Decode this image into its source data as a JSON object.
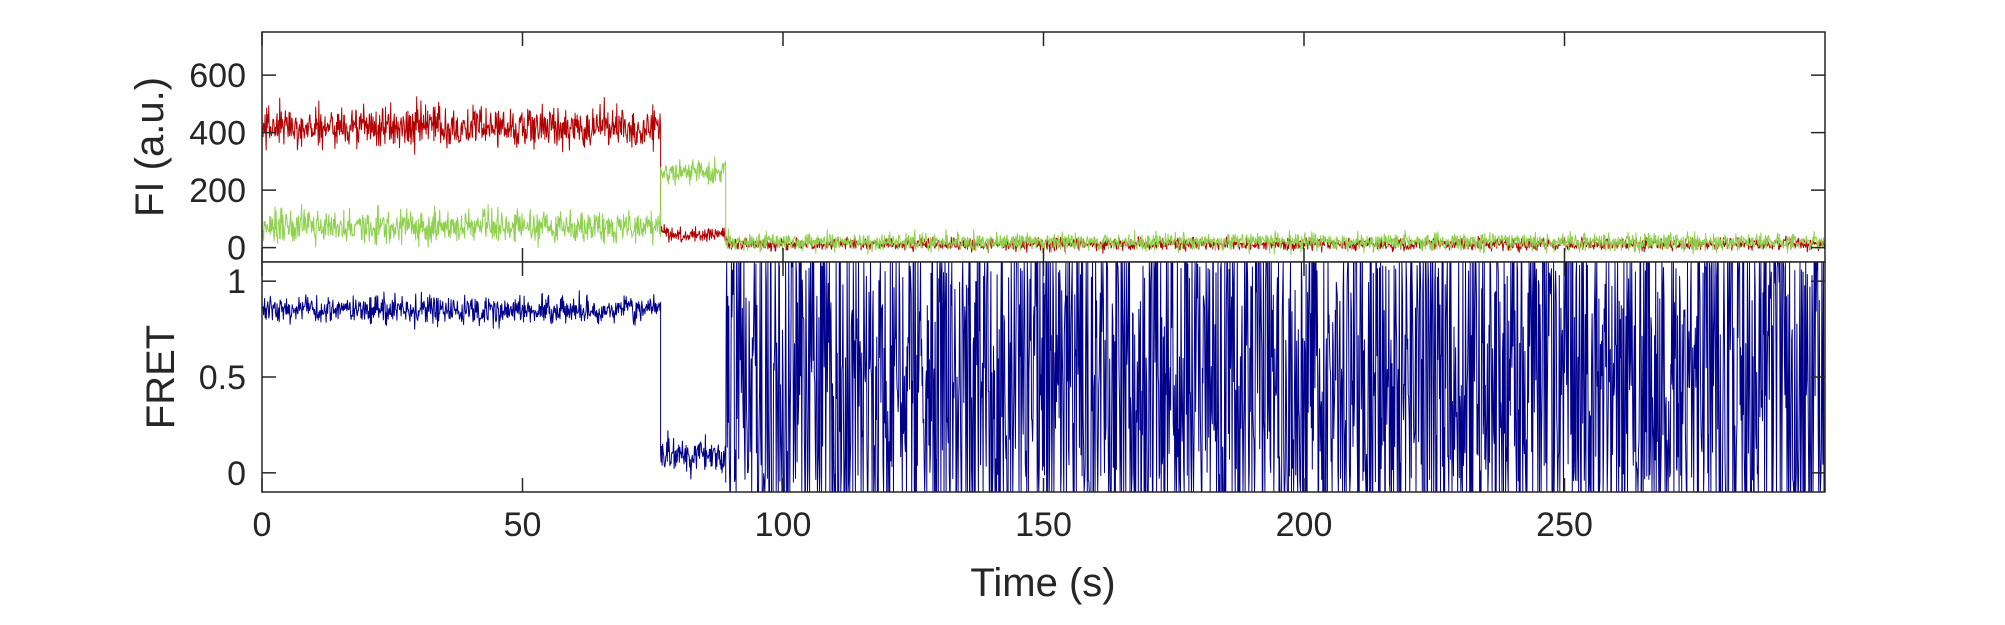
{
  "chart_data": [
    {
      "type": "line",
      "panel": "top",
      "ylabel": "FI (a.u.)",
      "xlim": [
        0,
        300
      ],
      "ylim": [
        -50,
        750
      ],
      "yticks": [
        0,
        200,
        400,
        600
      ],
      "ytick_labels": [
        "0",
        "200",
        "400",
        "600"
      ],
      "grid": false,
      "series": [
        {
          "color": "#b30000",
          "segments": [
            {
              "x_start": 0,
              "x_end": 76.5,
              "mean": 420,
              "noise": 95
            },
            {
              "x_start": 76.5,
              "x_end": 78,
              "mean": 60,
              "noise": 30
            },
            {
              "x_start": 78,
              "x_end": 89,
              "mean": 45,
              "noise": 30
            },
            {
              "x_start": 89,
              "x_end": 300,
              "mean": 12,
              "noise": 28
            }
          ]
        },
        {
          "color": "#8fd14f",
          "segments": [
            {
              "x_start": 0,
              "x_end": 76.5,
              "mean": 75,
              "noise": 75
            },
            {
              "x_start": 76.5,
              "x_end": 89,
              "mean": 265,
              "noise": 55
            },
            {
              "x_start": 89,
              "x_end": 300,
              "mean": 20,
              "noise": 40
            }
          ]
        }
      ]
    },
    {
      "type": "line",
      "panel": "bottom",
      "xlabel": "Time (s)",
      "ylabel": "FRET",
      "xlim": [
        0,
        300
      ],
      "ylim": [
        -0.1,
        1.1
      ],
      "yticks": [
        0,
        0.5,
        1
      ],
      "ytick_labels": [
        "0",
        "0.5",
        "1"
      ],
      "xticks": [
        0,
        50,
        100,
        150,
        200,
        250
      ],
      "xtick_labels": [
        "0",
        "50",
        "100",
        "150",
        "200",
        "250"
      ],
      "grid": false,
      "series": [
        {
          "color": "#00008b",
          "segments": [
            {
              "x_start": 0,
              "x_end": 76.5,
              "mean": 0.85,
              "noise": 0.09,
              "mode": "noise"
            },
            {
              "x_start": 76.5,
              "x_end": 89,
              "mean": 0.1,
              "noise": 0.12,
              "mode": "noise"
            },
            {
              "x_start": 89,
              "x_end": 300,
              "mode": "random"
            }
          ]
        }
      ]
    }
  ]
}
